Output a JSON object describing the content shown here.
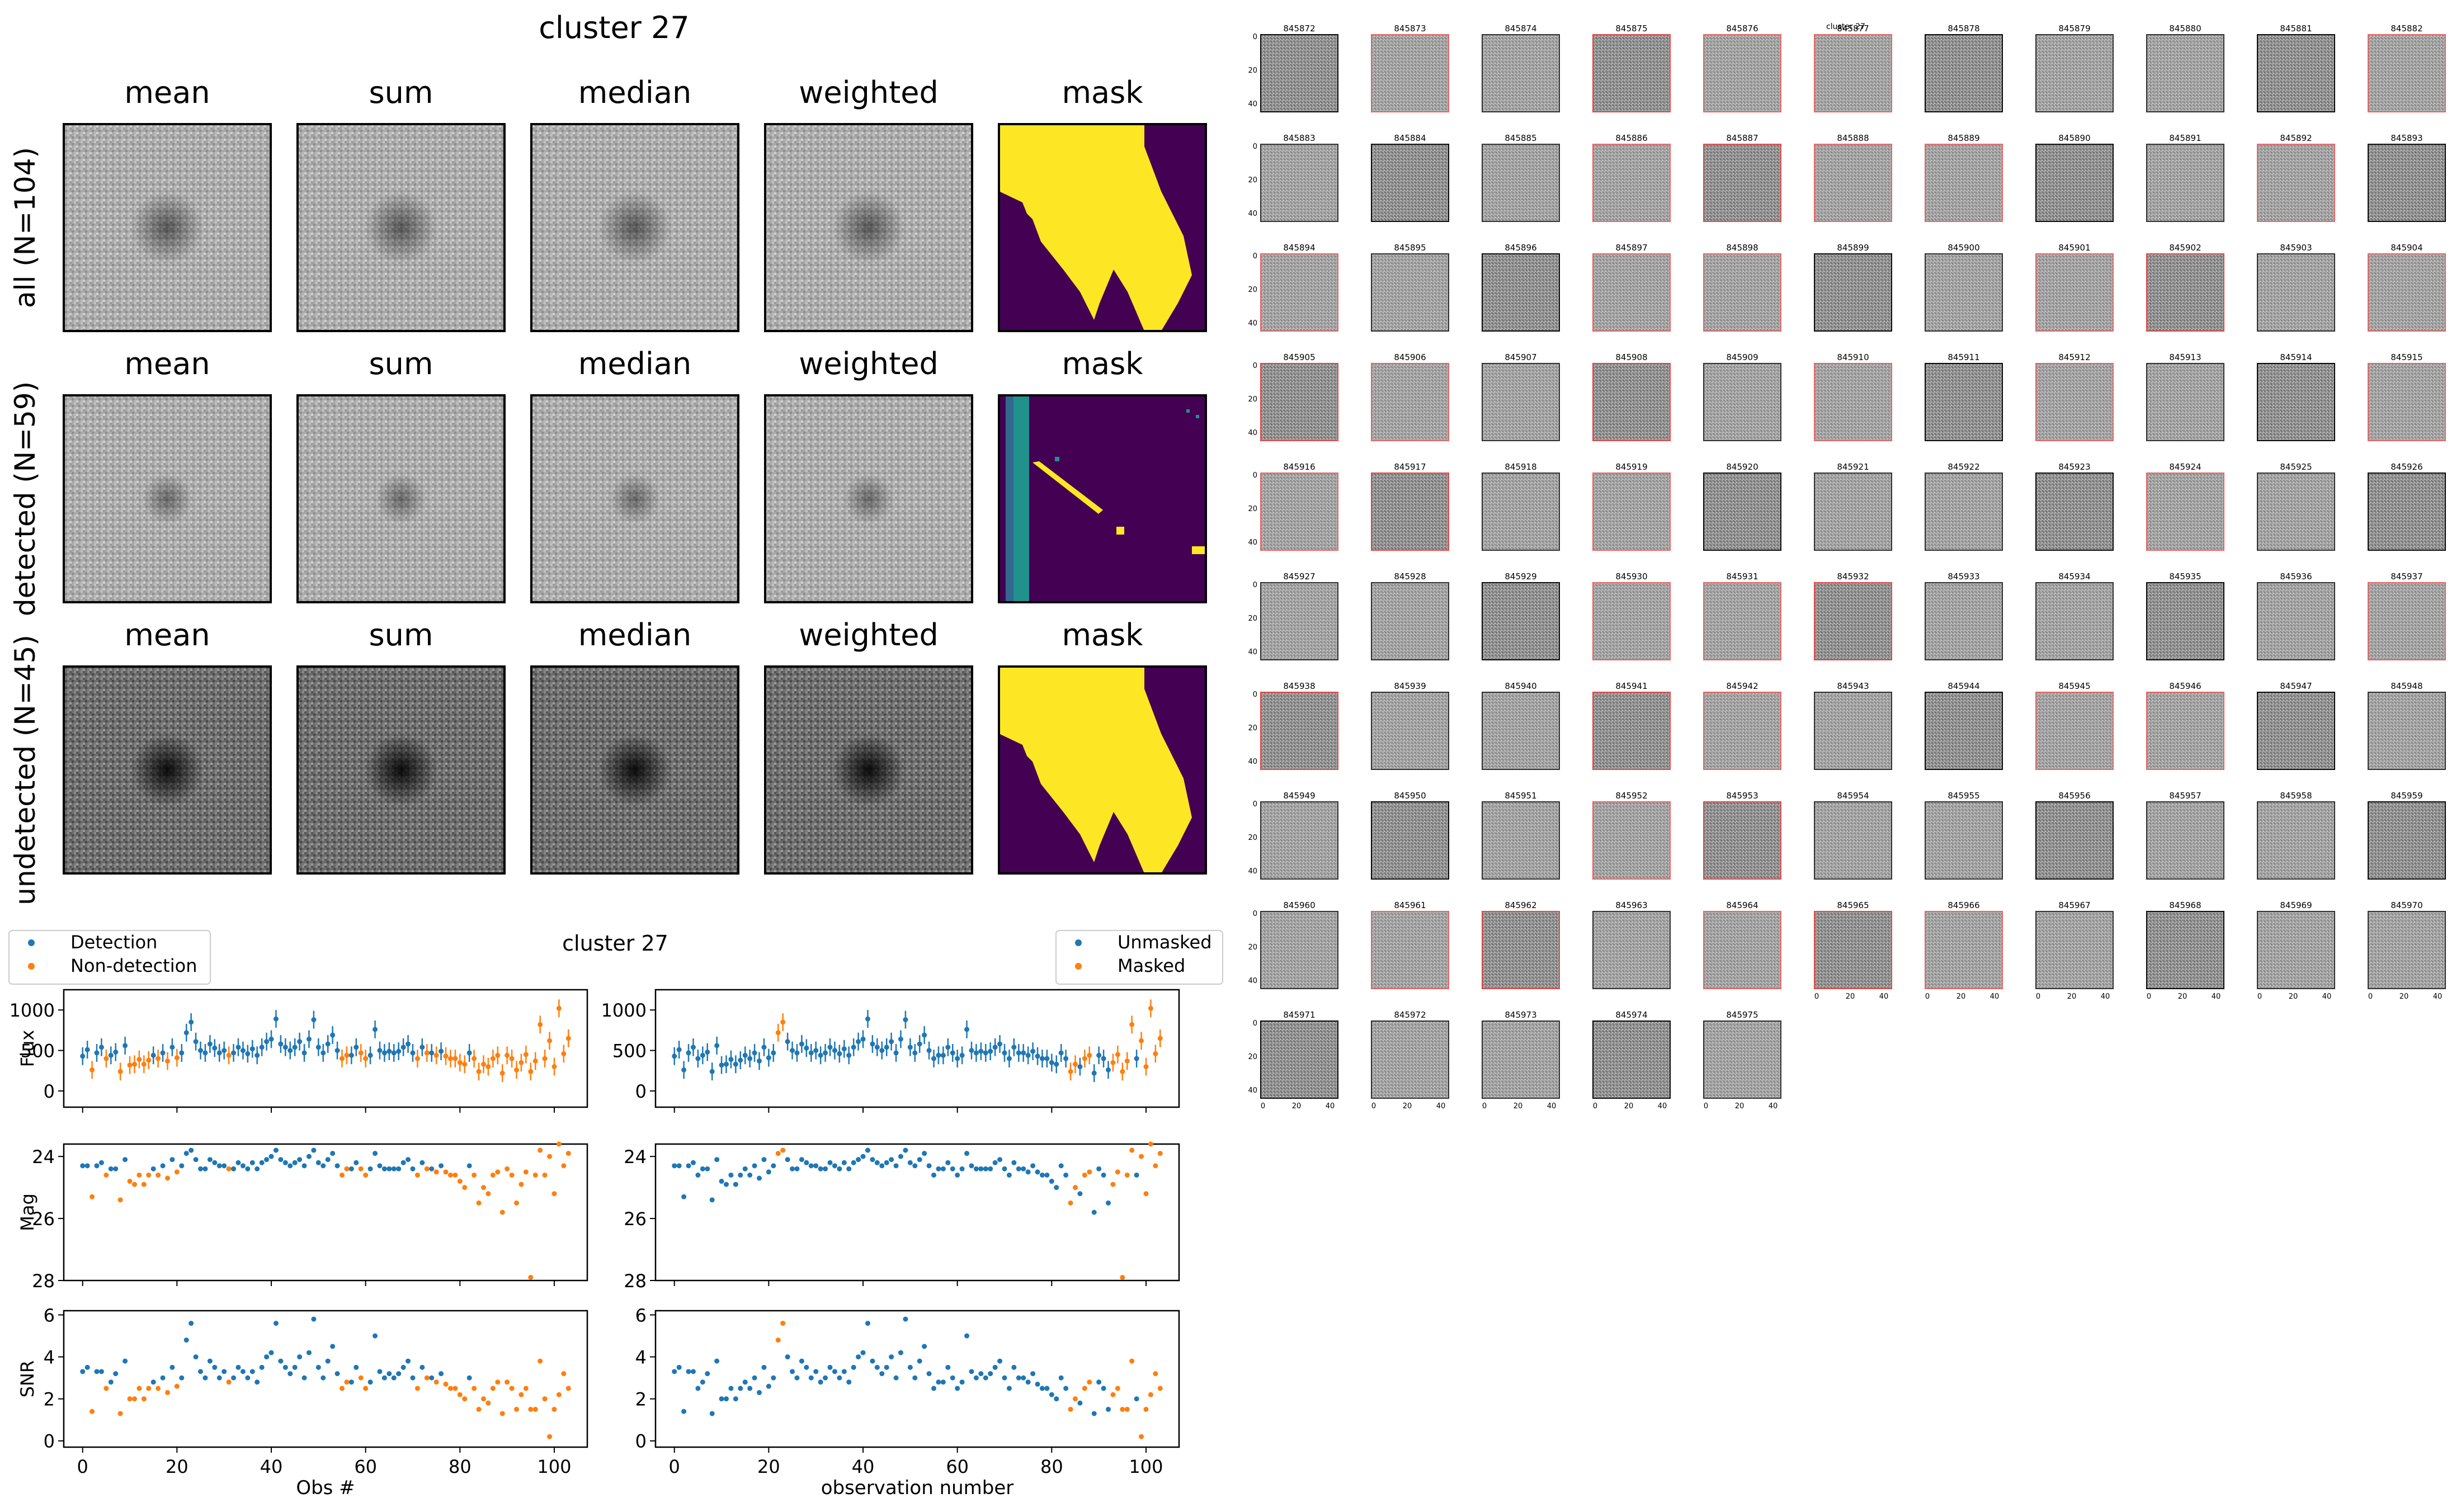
{
  "figure": {
    "title": "cluster 27",
    "stack_columns": [
      "mean",
      "sum",
      "median",
      "weighted",
      "mask"
    ],
    "stack_rows": [
      {
        "label": "all (N=104)",
        "contrast": 0.55,
        "mask": "yellow"
      },
      {
        "label": "detected (N=59)",
        "contrast": 0.45,
        "mask": "stripe"
      },
      {
        "label": "undetected (N=45)",
        "contrast": 1.0,
        "mask": "yellow"
      }
    ]
  },
  "chart_data": [
    {
      "type": "scatter",
      "title": "cluster 27",
      "xlabel": "Obs #",
      "xlim": [
        -4,
        107
      ],
      "xticks": [
        0,
        20,
        40,
        60,
        80,
        100
      ],
      "legend": [
        "Detection",
        "Non-detection"
      ],
      "legend_position": "top-left",
      "split_rule": "detection",
      "panels": [
        {
          "ylabel": "Flux",
          "ylim": [
            -200,
            1250
          ],
          "yticks": [
            0,
            500,
            1000
          ],
          "invert": false
        },
        {
          "ylabel": "Mag",
          "ylim": [
            23.6,
            28.0
          ],
          "yticks": [
            24,
            26,
            28
          ],
          "invert": true
        },
        {
          "ylabel": "SNR",
          "ylim": [
            -0.3,
            6.2
          ],
          "yticks": [
            0,
            2,
            4,
            6
          ],
          "invert": false
        }
      ]
    },
    {
      "type": "scatter",
      "title": "",
      "xlabel": "observation number",
      "xlim": [
        -4,
        107
      ],
      "xticks": [
        0,
        20,
        40,
        60,
        80,
        100
      ],
      "legend": [
        "Unmasked",
        "Masked"
      ],
      "legend_position": "top-right",
      "split_rule": "mask",
      "panels": [
        {
          "ylabel": "",
          "ylim": [
            -200,
            1250
          ],
          "yticks": [
            0,
            500,
            1000
          ],
          "invert": false
        },
        {
          "ylabel": "",
          "ylim": [
            23.6,
            28.0
          ],
          "yticks": [
            24,
            26,
            28
          ],
          "invert": true
        },
        {
          "ylabel": "",
          "ylim": [
            -0.3,
            6.2
          ],
          "yticks": [
            0,
            2,
            4,
            6
          ],
          "invert": false
        }
      ]
    }
  ],
  "series": {
    "colors": {
      "blue": "#1f77b4",
      "orange": "#ff7f0e"
    },
    "snr": [
      3.3,
      3.5,
      1.4,
      3.3,
      3.3,
      2.5,
      2.8,
      3.2,
      1.3,
      3.8,
      2.0,
      2.0,
      2.5,
      2.0,
      2.5,
      2.8,
      2.5,
      3.0,
      2.3,
      3.5,
      2.6,
      3.0,
      4.8,
      5.6,
      4.0,
      3.3,
      3.0,
      3.8,
      3.5,
      3.0,
      3.3,
      2.8,
      3.0,
      3.5,
      3.3,
      3.0,
      3.3,
      2.8,
      3.5,
      4.0,
      4.2,
      5.6,
      3.8,
      3.5,
      3.2,
      3.5,
      4.0,
      3.0,
      4.2,
      5.8,
      3.5,
      3.0,
      3.8,
      4.5,
      3.2,
      2.5,
      2.8,
      2.8,
      3.5,
      3.0,
      2.5,
      2.8,
      5.0,
      3.3,
      3.0,
      3.2,
      3.0,
      3.2,
      3.5,
      3.8,
      3.0,
      2.5,
      3.5,
      3.0,
      3.0,
      2.8,
      3.2,
      2.7,
      2.5,
      2.5,
      2.2,
      2.0,
      3.0,
      2.5,
      1.5,
      2.0,
      1.8,
      2.5,
      2.8,
      1.3,
      2.8,
      2.5,
      1.5,
      2.2,
      2.5,
      1.5,
      1.5,
      3.8,
      2.0,
      0.2,
      1.5,
      2.2,
      3.2,
      2.5
    ],
    "flux": [
      430,
      510,
      260,
      470,
      540,
      400,
      440,
      480,
      240,
      560,
      320,
      330,
      390,
      330,
      380,
      440,
      400,
      470,
      370,
      540,
      410,
      470,
      720,
      850,
      610,
      500,
      470,
      580,
      530,
      470,
      500,
      440,
      470,
      540,
      500,
      460,
      520,
      440,
      540,
      610,
      640,
      890,
      580,
      540,
      500,
      540,
      610,
      470,
      640,
      880,
      540,
      470,
      580,
      690,
      500,
      400,
      440,
      440,
      540,
      470,
      400,
      440,
      760,
      500,
      470,
      490,
      470,
      490,
      540,
      580,
      470,
      400,
      540,
      470,
      470,
      440,
      490,
      430,
      400,
      400,
      350,
      330,
      470,
      400,
      240,
      330,
      300,
      400,
      440,
      220,
      440,
      400,
      260,
      350,
      450,
      240,
      370,
      820,
      400,
      620,
      300,
      1020,
      460,
      650
    ],
    "mag": [
      24.3,
      24.3,
      25.3,
      24.3,
      24.2,
      24.6,
      24.4,
      24.4,
      25.4,
      24.1,
      24.8,
      24.9,
      24.6,
      24.9,
      24.6,
      24.4,
      24.6,
      24.3,
      24.7,
      24.1,
      24.5,
      24.3,
      23.9,
      23.8,
      24.1,
      24.4,
      24.4,
      24.1,
      24.2,
      24.3,
      24.3,
      24.4,
      24.4,
      24.2,
      24.3,
      24.4,
      24.2,
      24.4,
      24.2,
      24.1,
      24.0,
      23.8,
      24.1,
      24.2,
      24.3,
      24.2,
      24.1,
      24.3,
      24.0,
      23.8,
      24.2,
      24.3,
      24.1,
      23.9,
      24.3,
      24.6,
      24.4,
      24.4,
      24.2,
      24.4,
      24.6,
      24.4,
      23.9,
      24.3,
      24.4,
      24.4,
      24.4,
      24.4,
      24.2,
      24.1,
      24.4,
      24.6,
      24.2,
      24.4,
      24.4,
      24.5,
      24.3,
      24.5,
      24.6,
      24.6,
      24.8,
      25.0,
      24.3,
      24.6,
      25.5,
      25.0,
      25.2,
      24.6,
      24.5,
      25.8,
      24.4,
      24.6,
      25.5,
      24.9,
      24.5,
      27.9,
      24.6,
      23.8,
      24.6,
      24.0,
      25.2,
      23.6,
      24.3,
      23.9
    ],
    "detected": [
      1,
      1,
      0,
      1,
      1,
      0,
      1,
      1,
      0,
      1,
      0,
      0,
      0,
      0,
      0,
      1,
      0,
      1,
      0,
      1,
      0,
      1,
      1,
      1,
      1,
      1,
      1,
      1,
      1,
      1,
      1,
      0,
      1,
      1,
      1,
      1,
      1,
      1,
      1,
      1,
      1,
      1,
      1,
      1,
      1,
      1,
      1,
      1,
      1,
      1,
      1,
      1,
      1,
      1,
      1,
      0,
      0,
      1,
      1,
      0,
      0,
      1,
      1,
      1,
      1,
      1,
      1,
      1,
      1,
      1,
      1,
      0,
      1,
      0,
      1,
      0,
      1,
      0,
      0,
      0,
      0,
      0,
      1,
      0,
      0,
      0,
      0,
      0,
      0,
      0,
      0,
      0,
      0,
      0,
      0,
      0,
      0,
      0,
      0,
      0,
      0,
      0,
      0,
      0
    ],
    "masked": [
      0,
      0,
      0,
      0,
      0,
      0,
      0,
      0,
      0,
      0,
      0,
      0,
      0,
      0,
      0,
      0,
      0,
      0,
      0,
      0,
      0,
      0,
      1,
      1,
      0,
      0,
      0,
      0,
      0,
      0,
      0,
      0,
      0,
      0,
      0,
      0,
      0,
      0,
      0,
      0,
      0,
      0,
      0,
      0,
      0,
      0,
      0,
      0,
      0,
      0,
      0,
      0,
      0,
      0,
      0,
      0,
      0,
      0,
      0,
      0,
      0,
      0,
      0,
      0,
      0,
      0,
      0,
      0,
      0,
      0,
      0,
      0,
      0,
      0,
      0,
      0,
      0,
      0,
      0,
      0,
      0,
      0,
      0,
      0,
      1,
      1,
      0,
      1,
      1,
      0,
      0,
      0,
      0,
      1,
      1,
      1,
      1,
      1,
      0,
      1,
      1,
      1,
      1,
      1
    ]
  },
  "thumbnails": {
    "title": "cluster 27",
    "ids": [
      "845872",
      "845873",
      "845874",
      "845875",
      "845876",
      "845877",
      "845878",
      "845879",
      "845880",
      "845881",
      "845882",
      "845883",
      "845884",
      "845885",
      "845886",
      "845887",
      "845888",
      "845889",
      "845890",
      "845891",
      "845892",
      "845893",
      "845894",
      "845895",
      "845896",
      "845897",
      "845898",
      "845899",
      "845900",
      "845901",
      "845902",
      "845903",
      "845904",
      "845905",
      "845906",
      "845907",
      "845908",
      "845909",
      "845910",
      "845911",
      "845912",
      "845913",
      "845914",
      "845915",
      "845916",
      "845917",
      "845918",
      "845919",
      "845920",
      "845921",
      "845922",
      "845923",
      "845924",
      "845925",
      "845926",
      "845927",
      "845928",
      "845929",
      "845930",
      "845931",
      "845932",
      "845933",
      "845934",
      "845935",
      "845936",
      "845937",
      "845938",
      "845939",
      "845940",
      "845941",
      "845942",
      "845943",
      "845944",
      "845945",
      "845946",
      "845947",
      "845948",
      "845949",
      "845950",
      "845951",
      "845952",
      "845953",
      "845954",
      "845955",
      "845956",
      "845957",
      "845958",
      "845959",
      "845960",
      "845961",
      "845962",
      "845963",
      "845964",
      "845965",
      "845966",
      "845967",
      "845968",
      "845969",
      "845970",
      "845971",
      "845972",
      "845973",
      "845974",
      "845975"
    ],
    "axis_ticks_y": [
      "0",
      "20",
      "40"
    ],
    "axis_ticks_x": [
      "0",
      "20",
      "40"
    ]
  }
}
